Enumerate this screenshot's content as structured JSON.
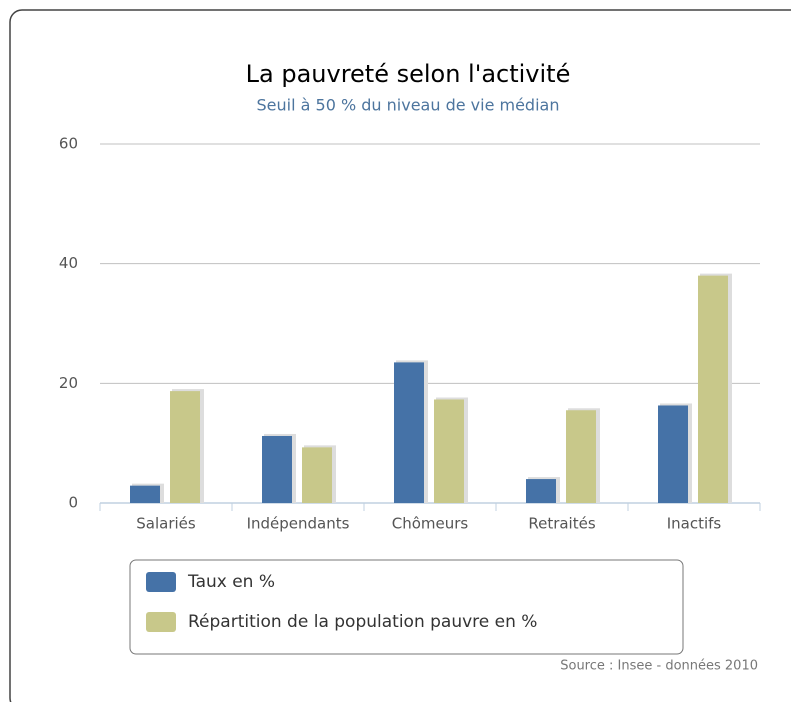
{
  "chart_data": {
    "type": "bar",
    "title": "La pauvreté selon l'activité",
    "subtitle": "Seuil à 50 % du niveau de vie médian",
    "categories": [
      "Salariés",
      "Indépendants",
      "Chômeurs",
      "Retraités",
      "Inactifs"
    ],
    "series": [
      {
        "name": "Taux en %",
        "color": "#4572a7",
        "values": [
          2.9,
          11.2,
          23.5,
          4,
          16.3
        ]
      },
      {
        "name": "Répartition de la population pauvre en %",
        "color": "#c8c88a",
        "values": [
          18.7,
          9.3,
          17.3,
          15.5,
          38
        ]
      }
    ],
    "ylim": [
      0,
      60
    ],
    "yticks": [
      0,
      20,
      40,
      60
    ],
    "grid": true,
    "source": "Source : Insee - données 2010"
  }
}
